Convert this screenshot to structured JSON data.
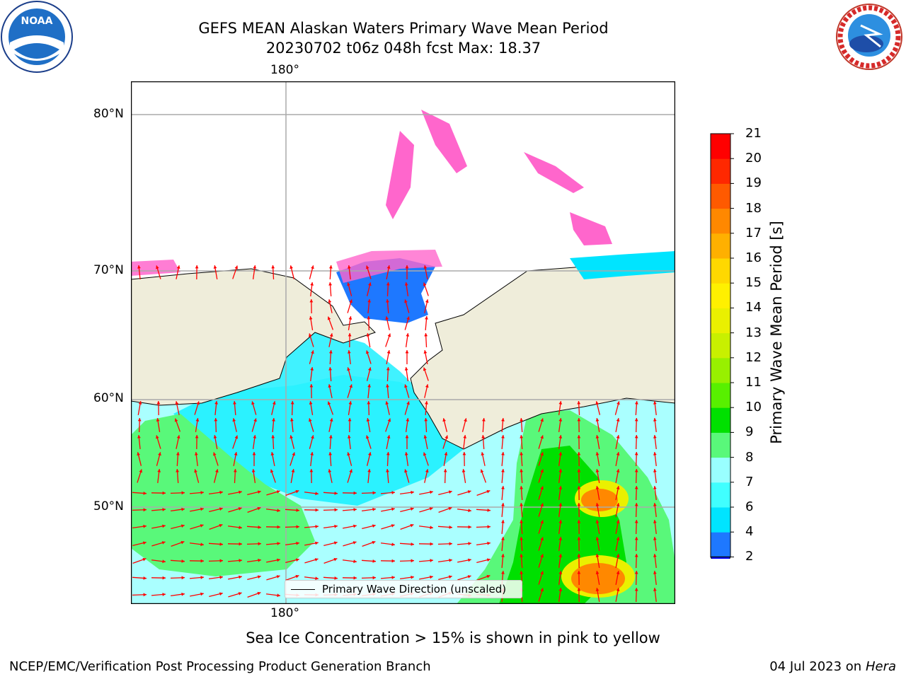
{
  "header": {
    "title_line1": "GEFS MEAN Alaskan Waters Primary Wave Mean Period",
    "title_line2": "20230702 t06z 048h fcst   Max: 18.37"
  },
  "logos": {
    "noaa_text": "NOAA",
    "nws_text": "NATIONAL WEATHER SERVICE"
  },
  "map": {
    "longitude_label_top": "180°",
    "longitude_label_bottom": "180°",
    "latitude_labels": [
      "80°N",
      "70°N",
      "60°N",
      "50°N"
    ],
    "legend_label": "Primary Wave Direction (unscaled)",
    "colors": {
      "land": "#efedda",
      "ocean_swell": "#aaffff",
      "arrow": "#ff0000",
      "grid": "#aaaaaa"
    }
  },
  "colorbar": {
    "title": "Primary Wave Mean Period [s]",
    "levels": [
      "2",
      "4",
      "6",
      "7",
      "8",
      "9",
      "10",
      "11",
      "12",
      "13",
      "14",
      "15",
      "16",
      "17",
      "18",
      "19",
      "20",
      "21"
    ],
    "colors": [
      "#1e78ff",
      "#00e4ff",
      "#40ffff",
      "#99ffff",
      "#59f87a",
      "#00e000",
      "#58f000",
      "#98f000",
      "#c8f000",
      "#eaf000",
      "#fff000",
      "#ffd800",
      "#ffb000",
      "#ff8800",
      "#ff5a00",
      "#ff2800",
      "#ff0000"
    ],
    "under_color": "#0000ff"
  },
  "note": "Sea Ice Concentration > 15% is shown in pink to yellow",
  "footer": {
    "left": "NCEP/EMC/Verification Post Processing Product Generation Branch",
    "right_date": "04 Jul 2023 on ",
    "right_machine": "Hera"
  }
}
